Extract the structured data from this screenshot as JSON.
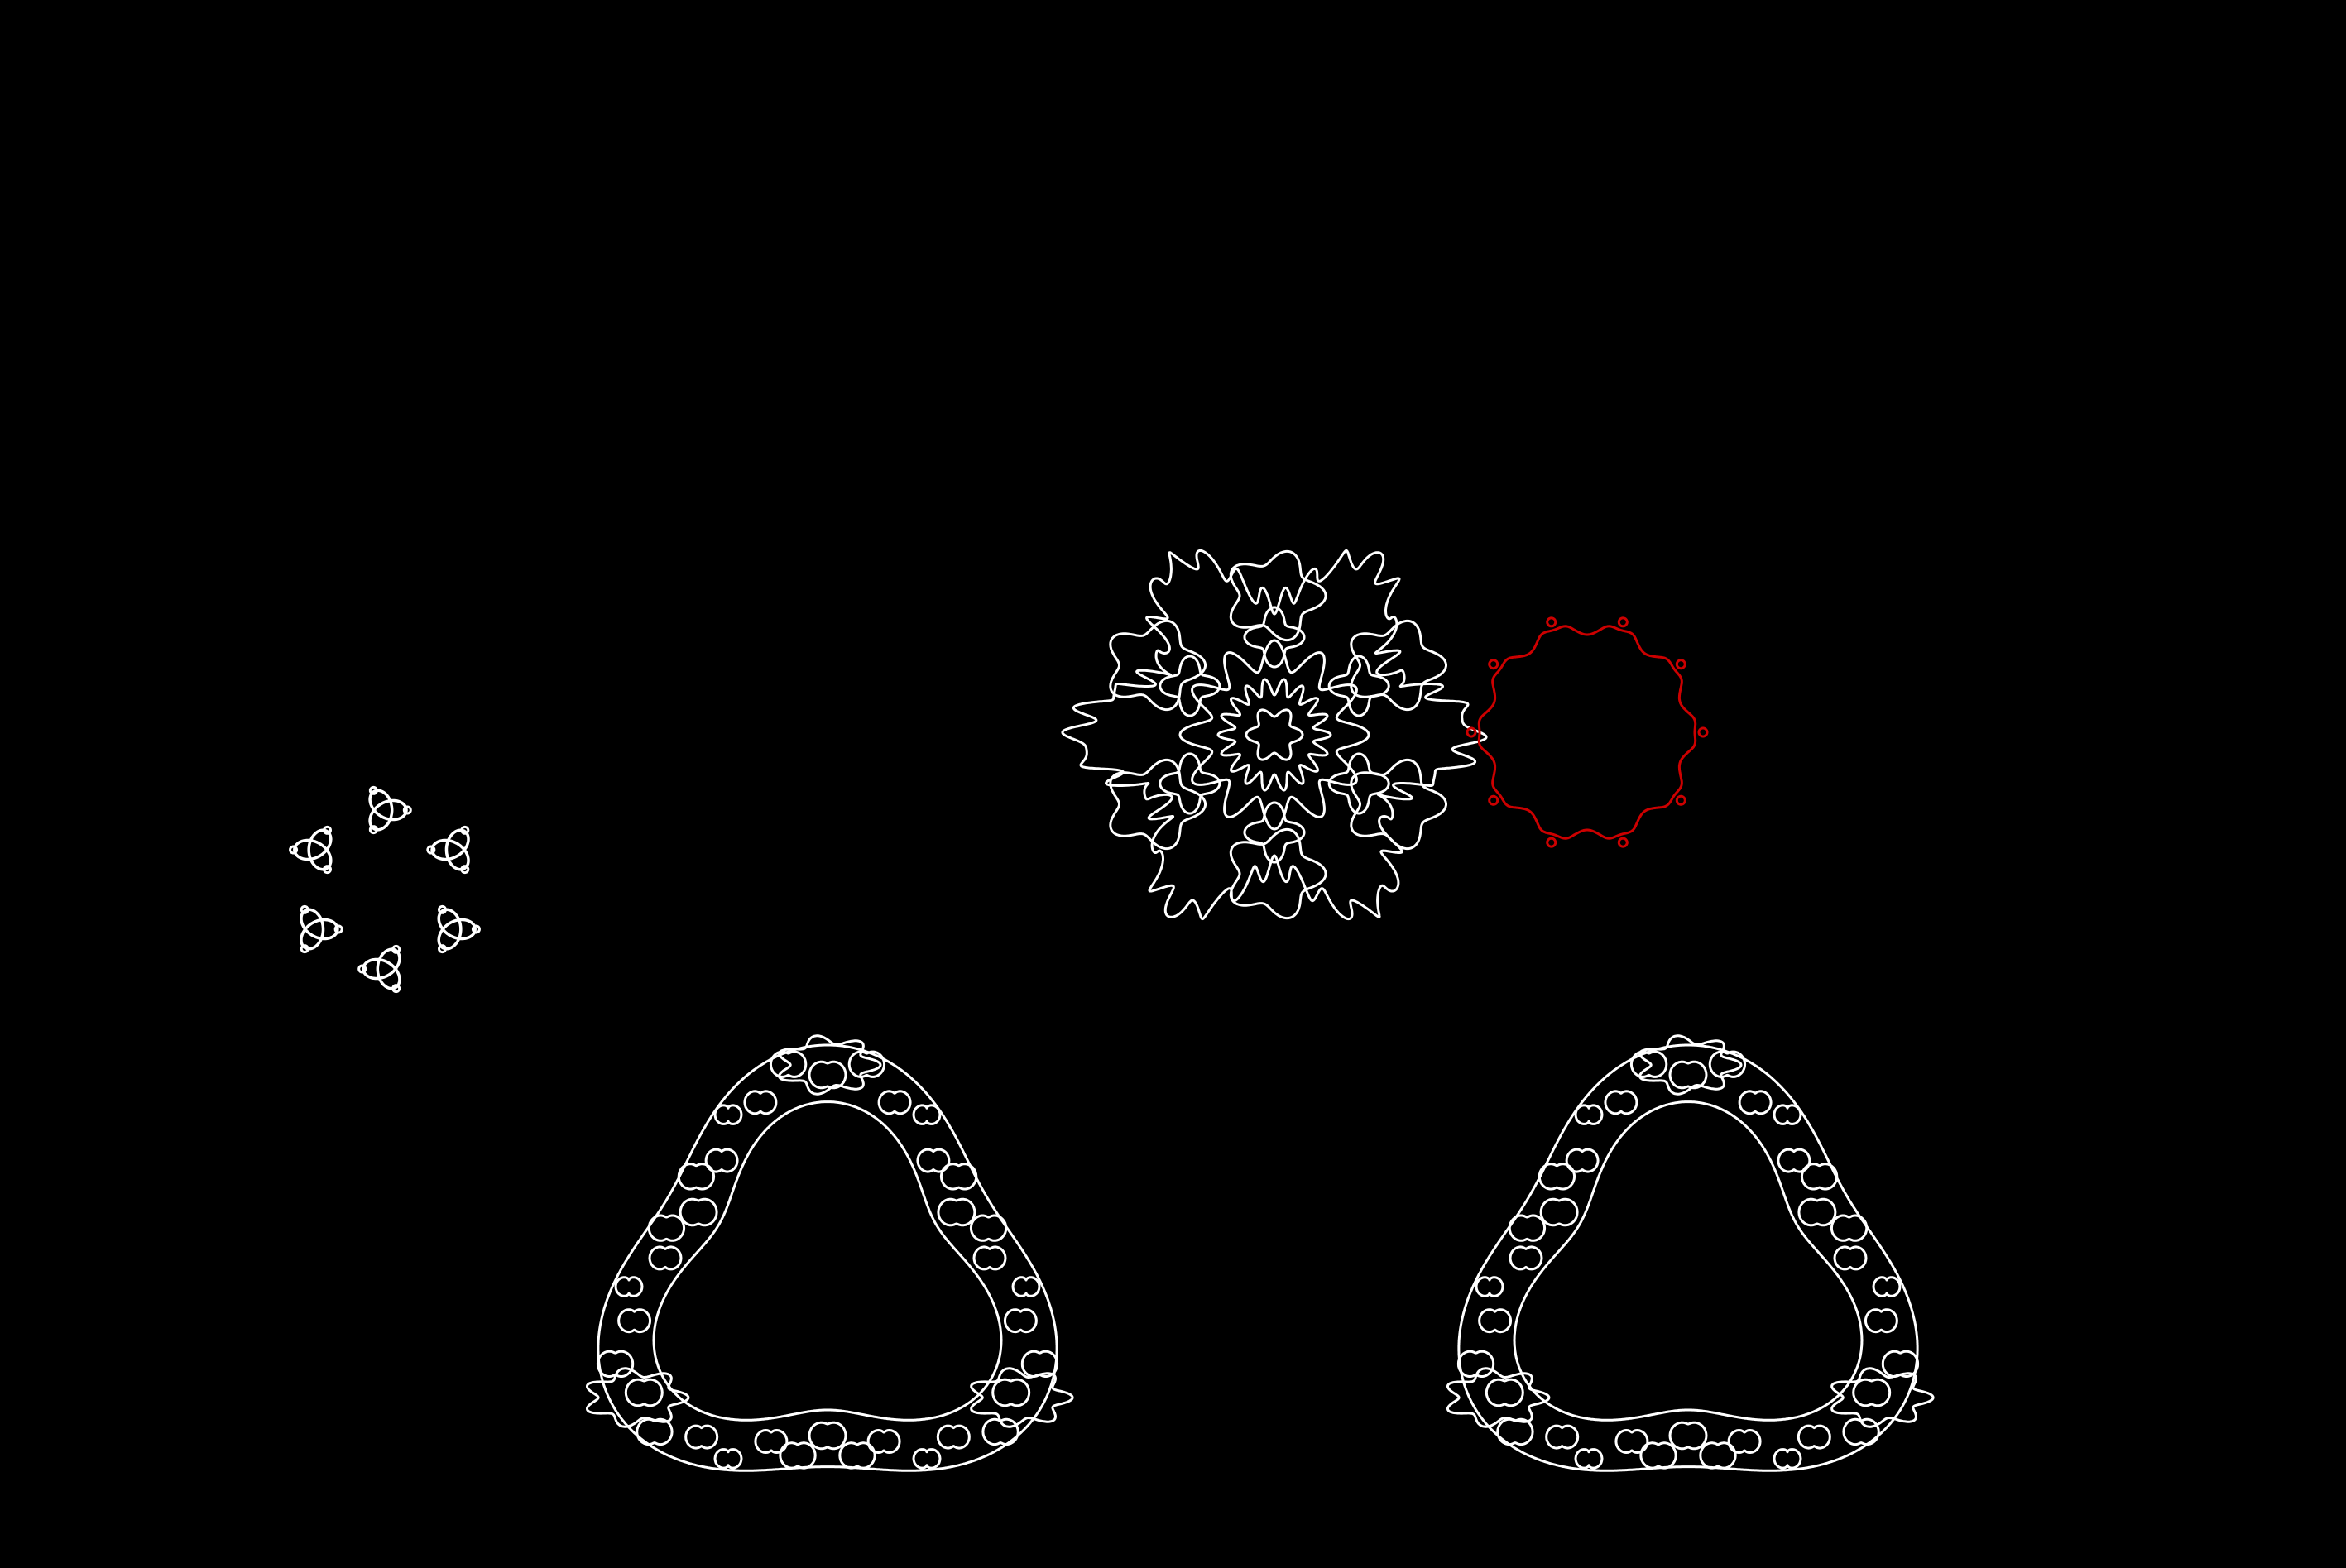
{
  "canvas": {
    "background": "#000000"
  },
  "figures": [
    {
      "id": "trefoil-ring",
      "kind": "six-trefoil-knot-ring",
      "color": "#ffffff"
    },
    {
      "id": "flower-lace",
      "kind": "six-petal-lace-rosette",
      "color": "#ffffff"
    },
    {
      "id": "red-ring",
      "kind": "wavy-loop-ring",
      "color": "#cc0000"
    },
    {
      "id": "lace-triangle-left",
      "kind": "trefoil-lace-band",
      "color": "#ffffff"
    },
    {
      "id": "lace-triangle-right",
      "kind": "trefoil-lace-band",
      "color": "#ffffff"
    }
  ]
}
